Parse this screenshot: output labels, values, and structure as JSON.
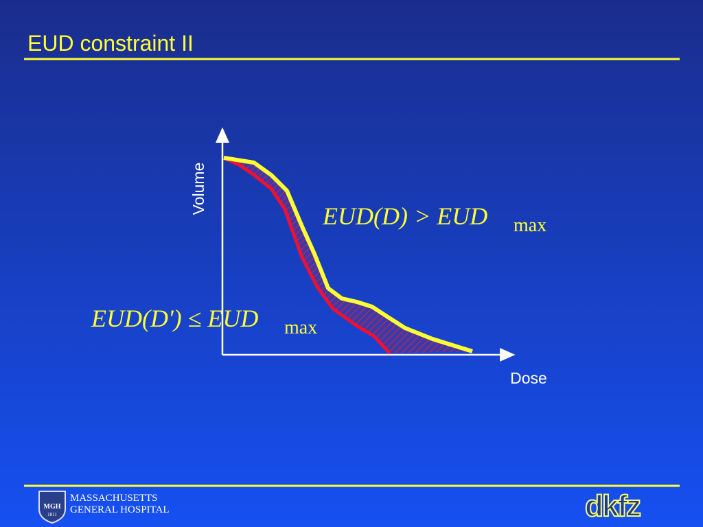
{
  "title": "EUD constraint II",
  "diagram": {
    "y_axis_label": "Volume",
    "x_axis_label": "Dose",
    "formula_upper": {
      "main": "EUD(D) > EUD",
      "subscript": "max"
    },
    "formula_lower": {
      "main": "EUD(D') ≤ EUD",
      "subscript": "max"
    }
  },
  "footer": {
    "hospital_line_1": "MASSACHUSETTS",
    "hospital_line_2": "GENERAL HOSPITAL",
    "shield_text": "MGH",
    "shield_year": "1811",
    "right_logo": "dkfz"
  }
}
